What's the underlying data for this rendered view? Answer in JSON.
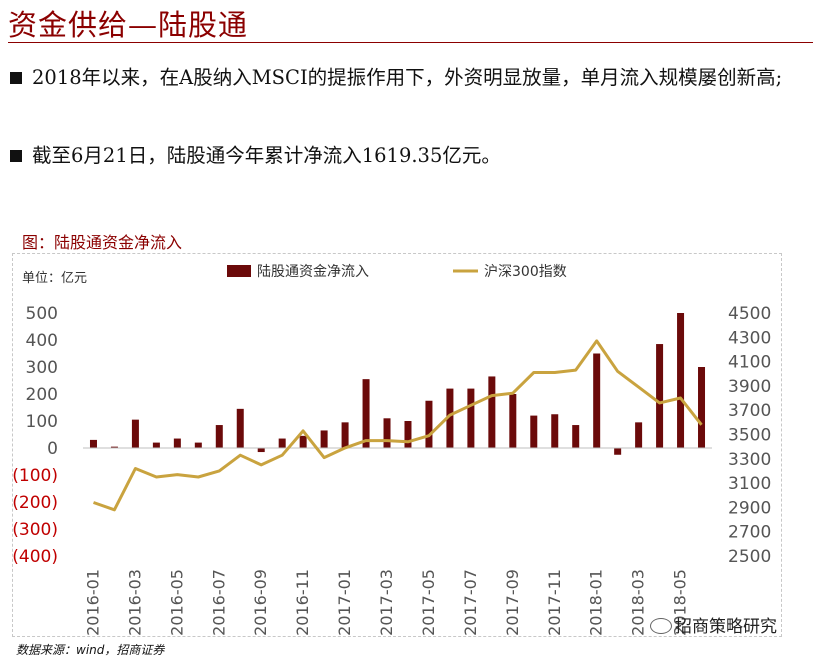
{
  "page": {
    "title": "资金供给—陆股通",
    "bullets": [
      "2018年以来，在A股纳入MSCI的提振作用下，外资明显放量，单月流入规模屡创新高;",
      "截至6月21日，陆股通今年累计净流入1619.35亿元。"
    ],
    "source": "数据来源：wind，招商证券",
    "watermark": "招商策略研究",
    "watermark_icon": "wechat-icon"
  },
  "colors": {
    "title": "#8b0000",
    "bar": "#6b0a0a",
    "line": "#c9a33f",
    "negative_tick": "#c00000",
    "tick": "#555555"
  },
  "chart_data": {
    "type": "bar",
    "title": "图：陆股通资金净流入",
    "unit_label": "单位：亿元",
    "legend_position": "top",
    "grid": false,
    "x": [
      "2016-01",
      "2016-02",
      "2016-03",
      "2016-04",
      "2016-05",
      "2016-06",
      "2016-07",
      "2016-08",
      "2016-09",
      "2016-10",
      "2016-11",
      "2016-12",
      "2017-01",
      "2017-02",
      "2017-03",
      "2017-04",
      "2017-05",
      "2017-06",
      "2017-07",
      "2017-08",
      "2017-09",
      "2017-10",
      "2017-11",
      "2017-12",
      "2018-01",
      "2018-02",
      "2018-03",
      "2018-04",
      "2018-05",
      "2018-06"
    ],
    "x_tick_labels": [
      "2016-01",
      "2016-03",
      "2016-05",
      "2016-07",
      "2016-09",
      "2016-11",
      "2017-01",
      "2017-03",
      "2017-05",
      "2017-07",
      "2017-09",
      "2017-11",
      "2018-01",
      "2018-03",
      "2018-05"
    ],
    "series": [
      {
        "name": "陆股通资金净流入",
        "type": "bar",
        "axis": "left",
        "values": [
          30,
          5,
          105,
          20,
          35,
          20,
          85,
          145,
          -15,
          35,
          45,
          65,
          95,
          255,
          110,
          100,
          175,
          220,
          220,
          265,
          200,
          120,
          125,
          85,
          350,
          -25,
          95,
          385,
          500,
          300
        ]
      },
      {
        "name": "沪深300指数",
        "type": "line",
        "axis": "right",
        "values": [
          2940,
          2880,
          3220,
          3150,
          3170,
          3150,
          3200,
          3330,
          3250,
          3330,
          3530,
          3310,
          3390,
          3450,
          3450,
          3440,
          3490,
          3660,
          3740,
          3820,
          3840,
          4010,
          4010,
          4030,
          4270,
          4020,
          3890,
          3760,
          3800,
          3580
        ]
      }
    ],
    "y_left": {
      "range": [
        -400,
        500
      ],
      "ticks": [
        500,
        400,
        300,
        200,
        100,
        0,
        -100,
        -200,
        -300,
        -400
      ],
      "tick_labels": [
        "500",
        "400",
        "300",
        "200",
        "100",
        "0",
        "(100)",
        "(200)",
        "(300)",
        "(400)"
      ]
    },
    "y_right": {
      "range": [
        2500,
        4500
      ],
      "ticks": [
        4500,
        4300,
        4100,
        3900,
        3700,
        3500,
        3300,
        3100,
        2900,
        2700,
        2500
      ],
      "tick_labels": [
        "4500",
        "4300",
        "4100",
        "3900",
        "3700",
        "3500",
        "3300",
        "3100",
        "2900",
        "2700",
        "2500"
      ]
    }
  }
}
